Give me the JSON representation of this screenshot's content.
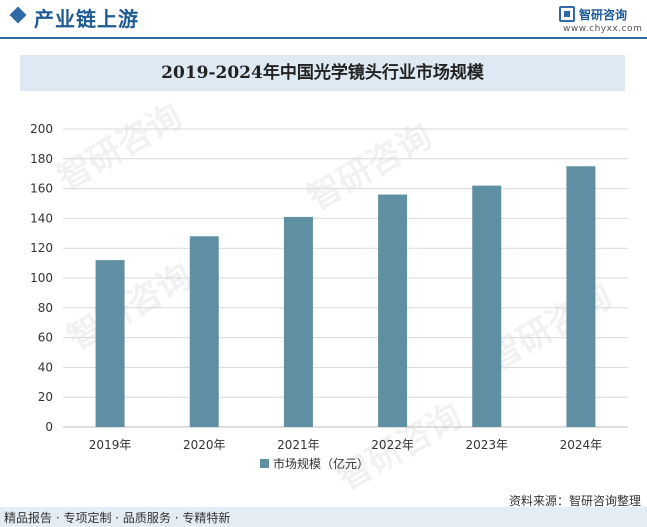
{
  "header": {
    "title": "产业链上游",
    "logo_name": "智研咨询",
    "logo_url": "www.chyxx.com"
  },
  "watermark_text": "智研咨询",
  "chart_data": {
    "type": "bar",
    "title": "2019-2024年中国光学镜头行业市场规模",
    "categories": [
      "2019年",
      "2020年",
      "2021年",
      "2022年",
      "2023年",
      "2024年"
    ],
    "series": [
      {
        "name": "市场规模（亿元）",
        "values": [
          112,
          128,
          141,
          156,
          162,
          175
        ]
      }
    ],
    "ylim": [
      0,
      200
    ],
    "yticks": [
      "0",
      "20",
      "40",
      "60",
      "80",
      "100",
      "120",
      "140",
      "160",
      "180",
      "200"
    ],
    "xlabel": "",
    "ylabel": "",
    "grid": true,
    "legend_position": "bottom",
    "colors": {
      "bar": "#5f8fa3",
      "grid": "#d9d9d9",
      "axis": "#bfbfbf"
    }
  },
  "footer": {
    "source": "资料来源：智研咨询整理",
    "tagline": "精品报告 · 专项定制 · 品质服务 · 专精特新"
  }
}
